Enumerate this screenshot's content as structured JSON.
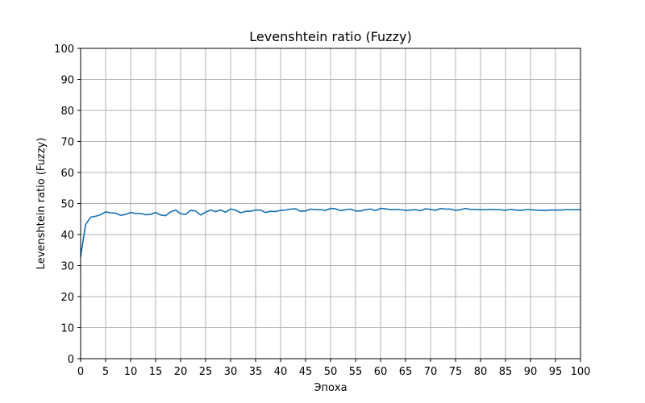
{
  "chart_data": {
    "type": "line",
    "title": "Levenshtein ratio (Fuzzy)",
    "xlabel": "Эпоха",
    "ylabel": "Levenshtein ratio (Fuzzy)",
    "xlim": [
      0,
      100
    ],
    "ylim": [
      0,
      100
    ],
    "xticks": [
      0,
      5,
      10,
      15,
      20,
      25,
      30,
      35,
      40,
      45,
      50,
      55,
      60,
      65,
      70,
      75,
      80,
      85,
      90,
      95,
      100
    ],
    "yticks": [
      0,
      10,
      20,
      30,
      40,
      50,
      60,
      70,
      80,
      90,
      100
    ],
    "grid": true,
    "line_color": "#1f77b4",
    "series": [
      {
        "x": [
          0,
          1,
          2,
          3,
          4,
          5,
          6,
          7,
          8,
          9,
          10,
          11,
          12,
          13,
          14,
          15,
          16,
          17,
          18,
          19,
          20,
          21,
          22,
          23,
          24,
          25,
          26,
          27,
          28,
          29,
          30,
          31,
          32,
          33,
          34,
          35,
          36,
          37,
          38,
          39,
          40,
          41,
          42,
          43,
          44,
          45,
          46,
          47,
          48,
          49,
          50,
          51,
          52,
          53,
          54,
          55,
          56,
          57,
          58,
          59,
          60,
          61,
          62,
          63,
          64,
          65,
          66,
          67,
          68,
          69,
          70,
          71,
          72,
          73,
          74,
          75,
          76,
          77,
          78,
          79,
          80,
          81,
          82,
          83,
          84,
          85,
          86,
          87,
          88,
          89,
          90,
          91,
          92,
          93,
          94,
          95,
          96,
          97,
          98,
          99,
          100
        ],
        "y": [
          33.0,
          43.2,
          45.6,
          45.9,
          46.4,
          47.3,
          47.0,
          46.9,
          46.2,
          46.5,
          47.1,
          46.8,
          46.8,
          46.4,
          46.5,
          47.1,
          46.3,
          46.1,
          47.3,
          47.9,
          46.7,
          46.5,
          47.8,
          47.6,
          46.3,
          47.2,
          47.9,
          47.4,
          47.9,
          47.2,
          48.2,
          47.9,
          47.0,
          47.5,
          47.5,
          47.9,
          47.9,
          47.1,
          47.5,
          47.4,
          47.8,
          47.9,
          48.2,
          48.3,
          47.5,
          47.6,
          48.2,
          48.0,
          48.0,
          47.8,
          48.4,
          48.3,
          47.7,
          48.0,
          48.2,
          47.6,
          47.6,
          48.0,
          48.2,
          47.7,
          48.4,
          48.3,
          48.0,
          48.1,
          48.0,
          47.8,
          47.9,
          48.0,
          47.7,
          48.3,
          48.1,
          47.8,
          48.4,
          48.2,
          48.2,
          47.8,
          48.0,
          48.4,
          48.1,
          48.1,
          48.0,
          48.0,
          48.1,
          48.0,
          48.0,
          47.8,
          48.1,
          47.9,
          47.8,
          48.0,
          48.0,
          47.9,
          47.8,
          47.8,
          47.9,
          47.9,
          47.9,
          48.0,
          48.0,
          48.0,
          48.0
        ]
      }
    ]
  }
}
